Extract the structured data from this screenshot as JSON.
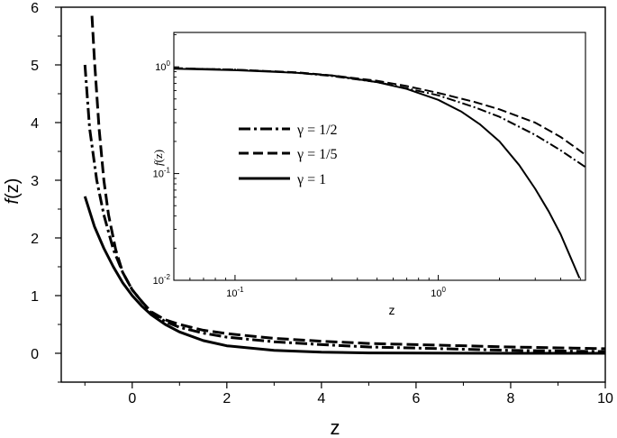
{
  "chart_data": [
    {
      "id": "main",
      "type": "line",
      "xlabel": "z",
      "ylabel_symbol": "f",
      "ylabel_arg": "(z)",
      "xlim": [
        -1.5,
        10
      ],
      "ylim": [
        -0.5,
        6
      ],
      "xticks": [
        0,
        2,
        4,
        6,
        8,
        10
      ],
      "yticks": [
        0,
        1,
        2,
        3,
        4,
        5,
        6
      ],
      "xtick_labels": [
        "0",
        "2",
        "4",
        "6",
        "8",
        "10"
      ],
      "ytick_labels": [
        "0",
        "1",
        "2",
        "3",
        "4",
        "5",
        "6"
      ],
      "grid": false,
      "series": [
        {
          "name": "γ = 1/2",
          "style": "dash-dot",
          "x": [
            -1.0,
            -0.9,
            -0.75,
            -0.6,
            -0.4,
            -0.2,
            0.0,
            0.2,
            0.4,
            0.7,
            1.0,
            1.5,
            2.0,
            3.0,
            4.0,
            5.0,
            6.0,
            8.0,
            10.0
          ],
          "y": [
            5.0,
            3.9,
            3.0,
            2.4,
            1.8,
            1.4,
            1.1,
            0.9,
            0.7,
            0.55,
            0.45,
            0.35,
            0.28,
            0.2,
            0.15,
            0.11,
            0.09,
            0.05,
            0.03
          ]
        },
        {
          "name": "γ = 1/5",
          "style": "dash",
          "x": [
            -0.85,
            -0.8,
            -0.7,
            -0.6,
            -0.5,
            -0.35,
            -0.2,
            0.0,
            0.2,
            0.4,
            0.7,
            1.0,
            1.5,
            2.0,
            3.0,
            4.0,
            5.0,
            6.0,
            8.0,
            10.0
          ],
          "y": [
            5.85,
            5.1,
            3.9,
            3.0,
            2.4,
            1.8,
            1.4,
            1.1,
            0.9,
            0.72,
            0.58,
            0.5,
            0.4,
            0.34,
            0.26,
            0.21,
            0.17,
            0.15,
            0.11,
            0.08
          ]
        },
        {
          "name": "γ = 1",
          "style": "solid",
          "x": [
            -1.0,
            -0.8,
            -0.6,
            -0.4,
            -0.2,
            0.0,
            0.2,
            0.4,
            0.7,
            1.0,
            1.5,
            2.0,
            3.0,
            4.0,
            5.0,
            6.0,
            8.0,
            10.0
          ],
          "y": [
            2.72,
            2.2,
            1.82,
            1.5,
            1.22,
            1.0,
            0.82,
            0.67,
            0.5,
            0.37,
            0.22,
            0.13,
            0.05,
            0.018,
            0.007,
            0.0025,
            0.0003,
            0.0
          ]
        }
      ]
    },
    {
      "id": "inset",
      "type": "line",
      "xlabel": "z",
      "ylabel_symbol": "f",
      "ylabel_arg": "(z)",
      "log_x": true,
      "log_y": true,
      "xlim": [
        0.05,
        5.3
      ],
      "ylim": [
        0.01,
        2.1
      ],
      "xticks": [
        0.1,
        1
      ],
      "yticks": [
        0.01,
        0.1,
        1
      ],
      "xtick_labels": [
        {
          "base": "10",
          "exp": "-1"
        },
        {
          "base": "10",
          "exp": "0"
        }
      ],
      "ytick_labels": [
        {
          "base": "10",
          "exp": "-2"
        },
        {
          "base": "10",
          "exp": "-1"
        },
        {
          "base": "10",
          "exp": "0"
        }
      ],
      "grid": false,
      "legend_position": "left",
      "series": [
        {
          "name": "γ = 1/2",
          "legend_symbol": "γ",
          "legend_value": "= 1/2",
          "style": "dash-dot",
          "x": [
            0.05,
            0.1,
            0.2,
            0.3,
            0.5,
            0.7,
            1.0,
            1.5,
            2.0,
            3.0,
            4.0,
            5.3
          ],
          "y": [
            0.97,
            0.94,
            0.88,
            0.82,
            0.72,
            0.63,
            0.54,
            0.42,
            0.34,
            0.23,
            0.165,
            0.115
          ]
        },
        {
          "name": "γ = 1/5",
          "legend_symbol": "γ",
          "legend_value": "= 1/5",
          "style": "dash",
          "x": [
            0.05,
            0.1,
            0.2,
            0.3,
            0.5,
            0.7,
            1.0,
            1.5,
            2.0,
            3.0,
            4.0,
            5.3
          ],
          "y": [
            0.97,
            0.94,
            0.89,
            0.83,
            0.74,
            0.66,
            0.57,
            0.47,
            0.4,
            0.3,
            0.22,
            0.15
          ]
        },
        {
          "name": "γ = 1",
          "legend_symbol": "γ",
          "legend_value": "= 1",
          "style": "solid",
          "x": [
            0.05,
            0.1,
            0.2,
            0.3,
            0.5,
            0.7,
            1.0,
            1.3,
            1.6,
            2.0,
            2.5,
            3.0,
            3.5,
            4.0,
            4.5,
            4.95
          ],
          "y": [
            0.96,
            0.93,
            0.88,
            0.83,
            0.72,
            0.62,
            0.49,
            0.38,
            0.29,
            0.2,
            0.12,
            0.072,
            0.044,
            0.027,
            0.016,
            0.0105
          ]
        }
      ]
    }
  ]
}
